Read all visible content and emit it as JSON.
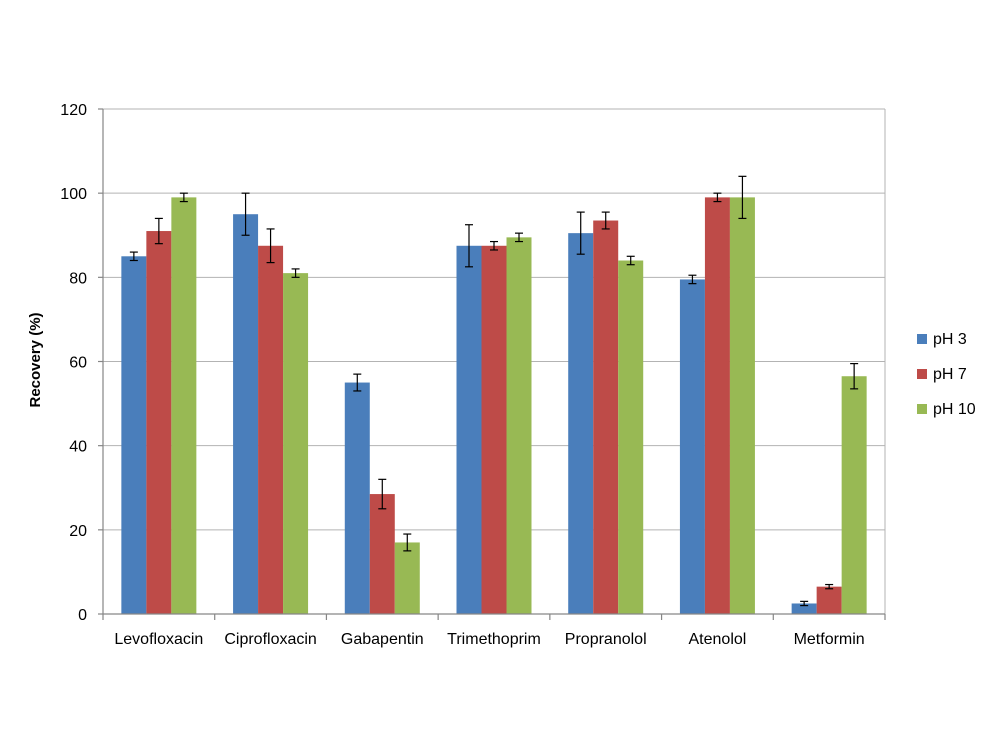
{
  "chart_data": {
    "type": "bar",
    "title": "",
    "xlabel": "",
    "ylabel": "Recovery (%)",
    "ylim": [
      0,
      120
    ],
    "yticks": [
      0,
      20,
      40,
      60,
      80,
      100,
      120
    ],
    "grid": true,
    "legend_position": "right",
    "categories": [
      "Levofloxacin",
      "Ciprofloxacin",
      "Gabapentin",
      "Trimethoprim",
      "Propranolol",
      "Atenolol",
      "Metformin"
    ],
    "series": [
      {
        "name": "pH 3",
        "color": "#4a7ebb",
        "values": [
          85,
          95,
          55,
          87.5,
          90.5,
          79.5,
          2.5
        ],
        "errors": [
          1,
          5,
          2,
          5,
          5,
          1,
          0.5
        ]
      },
      {
        "name": "pH 7",
        "color": "#be4b48",
        "values": [
          91,
          87.5,
          28.5,
          87.5,
          93.5,
          99,
          6.5
        ],
        "errors": [
          3,
          4,
          3.5,
          1,
          2,
          1,
          0.5
        ]
      },
      {
        "name": "pH 10",
        "color": "#98b954",
        "values": [
          99,
          81,
          17,
          89.5,
          84,
          99,
          56.5
        ],
        "errors": [
          1,
          1,
          2,
          1,
          1,
          5,
          3
        ]
      }
    ]
  }
}
